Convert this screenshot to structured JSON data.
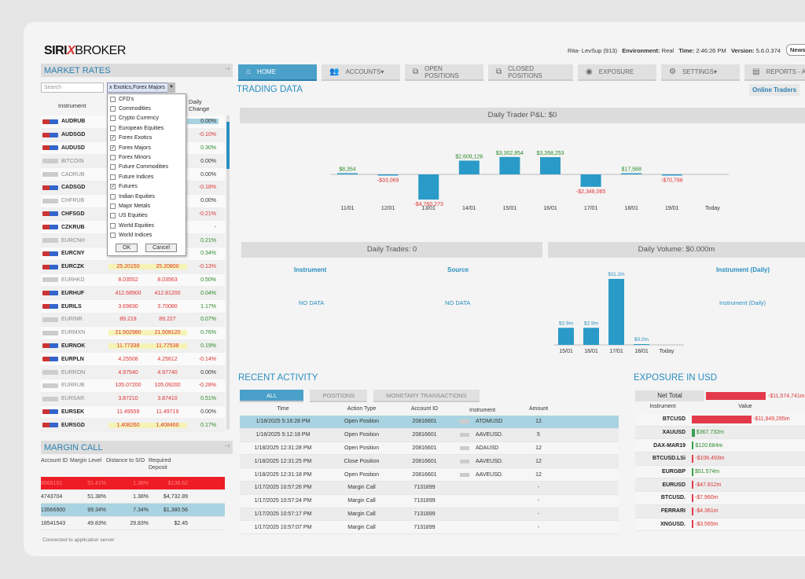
{
  "header": {
    "logo_a": "SIRI",
    "logo_x": "X",
    "logo_b": "BROKER",
    "user": "Rita- LevSup (913)",
    "env_label": "Environment:",
    "env": "Real",
    "time_label": "Time:",
    "time": "2:46:26 PM",
    "version_label": "Version:",
    "version": "5.6.0.374",
    "news": "News"
  },
  "market_rates": {
    "title": "MARKET RATES",
    "search_placeholder": "Search",
    "filter_value": "x Exotics,Forex Majors",
    "col_instrument": "Instrument",
    "col_change": "Daily Change",
    "rows": [
      {
        "sym": "AUDRUB",
        "bid": "",
        "ask": "",
        "chg": "0.00%",
        "dir": "",
        "dim": false
      },
      {
        "sym": "AUDSGD",
        "bid": "",
        "ask": "",
        "chg": "-0.10%",
        "dir": "neg",
        "dim": false
      },
      {
        "sym": "AUDUSD",
        "bid": "",
        "ask": "",
        "chg": "0.30%",
        "dir": "pos",
        "dim": false
      },
      {
        "sym": "BITCOIN",
        "bid": "",
        "ask": "",
        "chg": "0.00%",
        "dir": "",
        "dim": true
      },
      {
        "sym": "CADRUB",
        "bid": "",
        "ask": "",
        "chg": "0.00%",
        "dir": "",
        "dim": true
      },
      {
        "sym": "CADSGD",
        "bid": "",
        "ask": "",
        "chg": "-0.18%",
        "dir": "neg",
        "dim": false
      },
      {
        "sym": "CHFRUB",
        "bid": "",
        "ask": "",
        "chg": "0.00%",
        "dir": "",
        "dim": true
      },
      {
        "sym": "CHFSGD",
        "bid": "",
        "ask": "",
        "chg": "-0.21%",
        "dir": "neg",
        "dim": false
      },
      {
        "sym": "CZKRUB",
        "bid": "",
        "ask": "",
        "chg": "-",
        "dir": "",
        "dim": false
      },
      {
        "sym": "EURCNH",
        "bid": "",
        "ask": "",
        "chg": "0.21%",
        "dir": "pos",
        "dim": true
      },
      {
        "sym": "EURCNY",
        "bid": "",
        "ask": "",
        "chg": "0.34%",
        "dir": "pos",
        "dim": false
      },
      {
        "sym": "EURCZK",
        "bid": "25.20150",
        "ask": "25.20800",
        "chg": "-0.13%",
        "dir": "neg",
        "dim": false,
        "hl": true
      },
      {
        "sym": "EURHKD",
        "bid": "8.03552",
        "ask": "8.03563",
        "chg": "0.50%",
        "dir": "pos",
        "dim": true
      },
      {
        "sym": "EURHUF",
        "bid": "412.68900",
        "ask": "412.81200",
        "chg": "0.04%",
        "dir": "pos",
        "dim": false
      },
      {
        "sym": "EURILS",
        "bid": "3.69830",
        "ask": "3.70080",
        "chg": "1.17%",
        "dir": "pos",
        "dim": false
      },
      {
        "sym": "EURINR",
        "bid": "89.219",
        "ask": "89.227",
        "chg": "0.07%",
        "dir": "pos",
        "dim": true
      },
      {
        "sym": "EURMXN",
        "bid": "21.502980",
        "ask": "21.508120",
        "chg": "0.76%",
        "dir": "pos",
        "dim": true,
        "hl": true
      },
      {
        "sym": "EURNOK",
        "bid": "11.77338",
        "ask": "11.77538",
        "chg": "0.19%",
        "dir": "pos",
        "dim": false,
        "hl": true
      },
      {
        "sym": "EURPLN",
        "bid": "4.25508",
        "ask": "4.25612",
        "chg": "-0.14%",
        "dir": "neg",
        "dim": false
      },
      {
        "sym": "EURRON",
        "bid": "4.97540",
        "ask": "4.97740",
        "chg": "0.00%",
        "dir": "",
        "dim": true
      },
      {
        "sym": "EURRUB",
        "bid": "105.07200",
        "ask": "105.09200",
        "chg": "-0.28%",
        "dir": "neg",
        "dim": true
      },
      {
        "sym": "EURSAR",
        "bid": "3.87210",
        "ask": "3.87410",
        "chg": "0.51%",
        "dir": "pos",
        "dim": true
      },
      {
        "sym": "EURSEK",
        "bid": "11.49559",
        "ask": "11.49719",
        "chg": "0.00%",
        "dir": "",
        "dim": false
      },
      {
        "sym": "EURSGD",
        "bid": "1.408260",
        "ask": "1.408460",
        "chg": "0.17%",
        "dir": "pos",
        "dim": false,
        "hl": true
      }
    ]
  },
  "dropdown": {
    "items": [
      {
        "label": "CFD's",
        "checked": false
      },
      {
        "label": "Commodities",
        "checked": false
      },
      {
        "label": "Crypto Currency",
        "checked": false
      },
      {
        "label": "European Equities",
        "checked": false
      },
      {
        "label": "Forex Exotics",
        "checked": true
      },
      {
        "label": "Forex Majors",
        "checked": true
      },
      {
        "label": "Forex Minors",
        "checked": false
      },
      {
        "label": "Future Commodities",
        "checked": false
      },
      {
        "label": "Future Indices",
        "checked": false
      },
      {
        "label": "Futures",
        "checked": true
      },
      {
        "label": "Indian Equities",
        "checked": false
      },
      {
        "label": "Major Metals",
        "checked": false
      },
      {
        "label": "US Equities",
        "checked": false
      },
      {
        "label": "World Equities",
        "checked": false
      },
      {
        "label": "World Indices",
        "checked": false
      }
    ],
    "ok": "OK",
    "cancel": "Cancel"
  },
  "margin_call": {
    "title": "MARGIN CALL",
    "col_account": "Account ID",
    "col_margin": "Margin Level",
    "col_distance": "Distance to S/O",
    "col_required": "Required Deposit",
    "rows": [
      {
        "account": "8666191",
        "margin": "51.41%",
        "distance": "1.38%",
        "required": "$138.62",
        "style": "red"
      },
      {
        "account": "4743704",
        "margin": "51.38%",
        "distance": "1.38%",
        "required": "$4,732.89",
        "style": ""
      },
      {
        "account": "13566900",
        "margin": "99.34%",
        "distance": "7.34%",
        "required": "$1,380.56",
        "style": "blue"
      },
      {
        "account": "18541543",
        "margin": "49.83%",
        "distance": "29.83%",
        "required": "$2.45",
        "style": ""
      }
    ],
    "status": "Connected to application server"
  },
  "tabs": [
    {
      "label": "HOME",
      "icon": "home-icon",
      "glyph": "⌂"
    },
    {
      "label": "ACCOUNTS",
      "icon": "accounts-icon",
      "glyph": "👥"
    },
    {
      "label": "OPEN POSITIONS",
      "icon": "open-positions-icon",
      "glyph": "⧉"
    },
    {
      "label": "CLOSED POSITIONS",
      "icon": "closed-positions-icon",
      "glyph": "⧉"
    },
    {
      "label": "EXPOSURE",
      "icon": "eye-icon",
      "glyph": "◉"
    },
    {
      "label": "SETTINGS",
      "icon": "gear-icon",
      "glyph": "⚙"
    },
    {
      "label": "REPORTS - A",
      "icon": "reports-icon",
      "glyph": "▤"
    }
  ],
  "trading": {
    "title": "TRADING DATA",
    "online_traders": "Online Traders",
    "pnl_title": "Daily Trader P&L: $0",
    "trades_title": "Daily Trades: 0",
    "volume_title": "Daily Volume: $0.000m",
    "instrument_label": "Instrument",
    "source_label": "Source",
    "instrument_daily_label": "Instrument (Daily)",
    "no_data": "NO DATA",
    "instrument_daily_text": "Instrument (Daily)"
  },
  "chart_data": [
    {
      "type": "bar",
      "title": "Daily Trader P&L: $0",
      "categories": [
        "11/01",
        "12/01",
        "13/01",
        "14/01",
        "15/01",
        "16/01",
        "17/01",
        "18/01",
        "19/01",
        "Today"
      ],
      "values": [
        8354,
        -33069,
        -4760273,
        2609126,
        3302854,
        3268253,
        -2348065,
        17588,
        -70786,
        0
      ],
      "labels": [
        "$8,354",
        "-$33,069",
        "-$4,760,273",
        "$2,609,126",
        "$3,302,854",
        "$3,268,253",
        "-$2,348,065",
        "$17,588",
        "-$70,786",
        ""
      ]
    },
    {
      "type": "bar",
      "title": "Daily Volume: $0.000m",
      "categories": [
        "15/01",
        "16/01",
        "17/01",
        "18/01",
        "Today"
      ],
      "values": [
        2.9,
        2.9,
        11.2,
        0.0,
        0
      ],
      "labels": [
        "$2.9m",
        "$2.9m",
        "$11.2m",
        "$0.0m",
        ""
      ]
    }
  ],
  "recent": {
    "title": "RECENT ACTIVITY",
    "tabs": [
      "ALL",
      "POSITIONS",
      "MONETARY TRANSACTIONS"
    ],
    "cols": {
      "time": "Time",
      "action": "Action Type",
      "account": "Account ID",
      "instrument": "Instrument",
      "amount": "Amount"
    },
    "rows": [
      {
        "time": "1/18/2025 5:16:28 PM",
        "action": "Open Position",
        "account": "20816601",
        "inst": "ATOMUSD",
        "amt": "12",
        "sel": true
      },
      {
        "time": "1/18/2025 5:12:18 PM",
        "action": "Open Position",
        "account": "20816601",
        "inst": "AAVEUSD.",
        "amt": "5"
      },
      {
        "time": "1/18/2025 12:31:28 PM",
        "action": "Open Position",
        "account": "20816601",
        "inst": "ADAUSD",
        "amt": "12"
      },
      {
        "time": "1/18/2025 12:31:25 PM",
        "action": "Close Position",
        "account": "20816601",
        "inst": "AAVEUSD.",
        "amt": "12"
      },
      {
        "time": "1/18/2025 12:31:18 PM",
        "action": "Open Position",
        "account": "20816601",
        "inst": "AAVEUSD.",
        "amt": "12"
      },
      {
        "time": "1/17/2025 10:57:26 PM",
        "action": "Margin Call",
        "account": "7131899",
        "inst": "",
        "amt": "-"
      },
      {
        "time": "1/17/2025 10:57:24 PM",
        "action": "Margin Call",
        "account": "7131899",
        "inst": "",
        "amt": "-"
      },
      {
        "time": "1/17/2025 10:57:17 PM",
        "action": "Margin Call",
        "account": "7131899",
        "inst": "",
        "amt": "-"
      },
      {
        "time": "1/17/2025 10:57:07 PM",
        "action": "Margin Call",
        "account": "7131899",
        "inst": "",
        "amt": "-"
      }
    ]
  },
  "exposure": {
    "title": "EXPOSURE IN USD",
    "net_label": "Net Total",
    "net_value": "-$11,574,741m",
    "col_instrument": "Instrument",
    "col_value": "Value",
    "rows": [
      {
        "name": "BTCUSD",
        "value": "-$11,949,285m",
        "neg": true,
        "bar": 1.0,
        "coin": true
      },
      {
        "name": "XAUUSD",
        "value": "$367.732m",
        "neg": false,
        "bar": 0.05
      },
      {
        "name": "DAX-MAR19",
        "value": "$120.684m",
        "neg": false,
        "bar": 0.03
      },
      {
        "name": "BTCUSD.LSi",
        "value": "-$106.493m",
        "neg": true,
        "bar": 0.03,
        "coin": true
      },
      {
        "name": "EURGBP",
        "value": "$51.574m",
        "neg": false,
        "bar": 0.02
      },
      {
        "name": "EURUSD",
        "value": "-$47.812m",
        "neg": true,
        "bar": 0.02
      },
      {
        "name": "BTCUSD.",
        "value": "-$7.960m",
        "neg": true,
        "bar": 0.01,
        "coin": true
      },
      {
        "name": "FERRARI",
        "value": "-$4.361m",
        "neg": true,
        "bar": 0.01
      },
      {
        "name": "XNGUSD.",
        "value": "-$3.565m",
        "neg": true,
        "bar": 0.01
      }
    ]
  }
}
